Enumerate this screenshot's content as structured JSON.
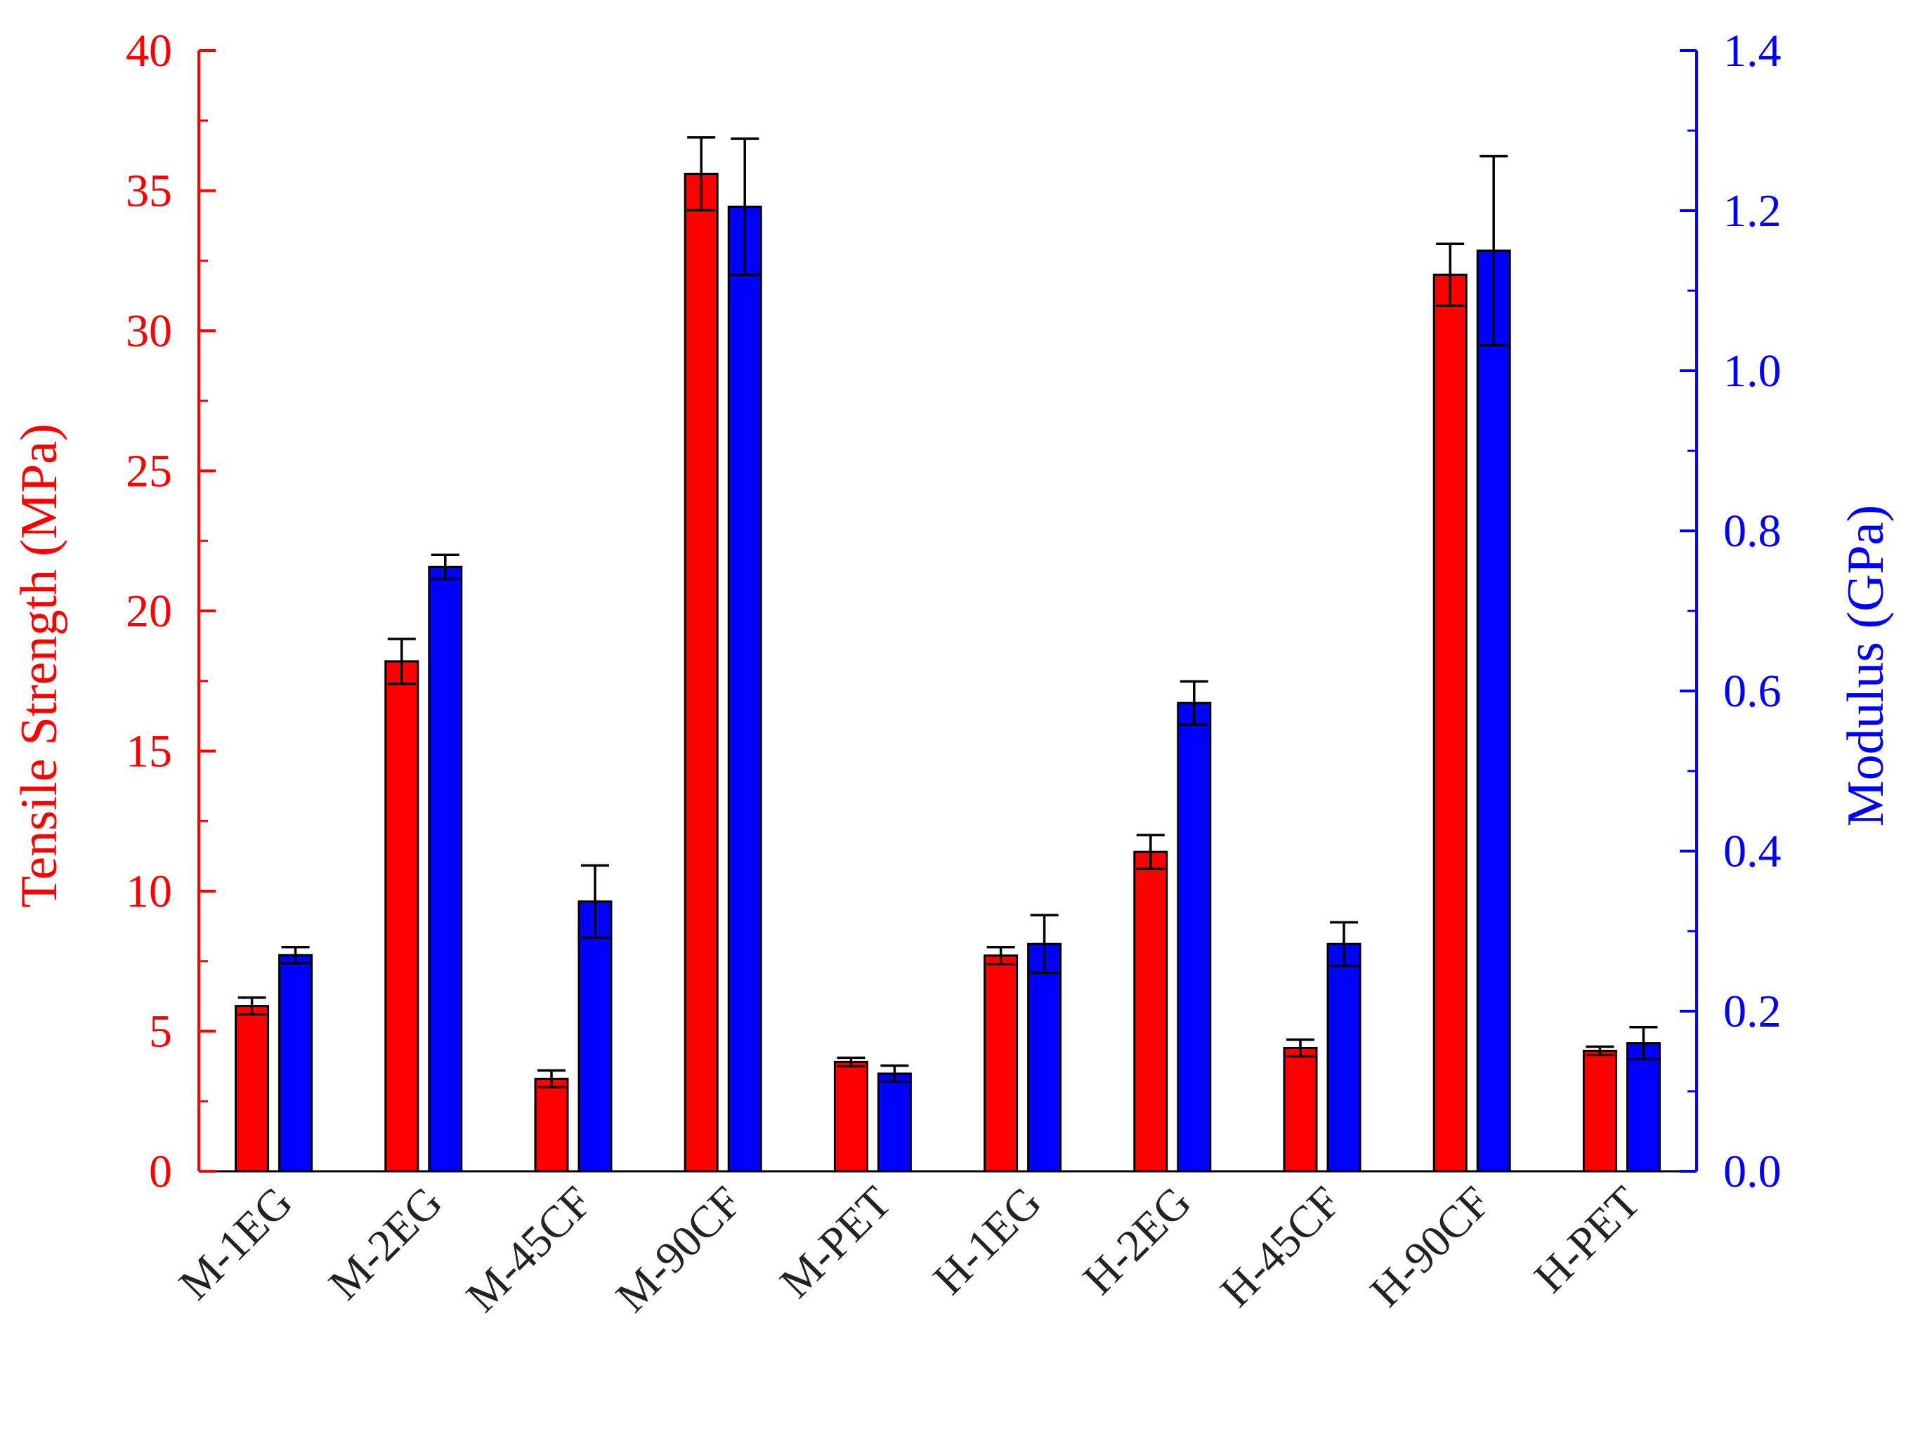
{
  "chart_data": {
    "type": "bar",
    "categories": [
      "M-1EG",
      "M-2EG",
      "M-45CF",
      "M-90CF",
      "M-PET",
      "H-1EG",
      "H-2EG",
      "H-45CF",
      "H-90CF",
      "H-PET"
    ],
    "series": [
      {
        "name": "Tensile Strength",
        "axis": "left",
        "color": "#ff0000",
        "values": [
          5.9,
          18.2,
          3.3,
          35.6,
          3.9,
          7.7,
          11.4,
          4.4,
          32.0,
          4.3
        ],
        "errors": [
          0.3,
          0.8,
          0.3,
          1.3,
          0.15,
          0.3,
          0.6,
          0.3,
          1.1,
          0.15
        ]
      },
      {
        "name": "Modulus",
        "axis": "right",
        "color": "#0000ff",
        "values": [
          0.27,
          0.755,
          0.337,
          1.205,
          0.122,
          0.284,
          0.585,
          0.284,
          1.15,
          0.16
        ],
        "errors": [
          0.01,
          0.015,
          0.045,
          0.085,
          0.01,
          0.036,
          0.027,
          0.027,
          0.118,
          0.02
        ]
      }
    ],
    "left_axis": {
      "label": "Tensile Strength (MPa)",
      "ylim": [
        0,
        40
      ],
      "ticks": [
        "0",
        "5",
        "10",
        "15",
        "20",
        "25",
        "30",
        "35",
        "40"
      ],
      "color": "#ff0000"
    },
    "right_axis": {
      "label": "Modulus (GPa)",
      "ylim": [
        0,
        1.4
      ],
      "ticks": [
        "0.0",
        "0.2",
        "0.4",
        "0.6",
        "0.8",
        "1.0",
        "1.2",
        "1.4"
      ],
      "color": "#0000ff"
    },
    "grid": false,
    "legend": "none"
  }
}
